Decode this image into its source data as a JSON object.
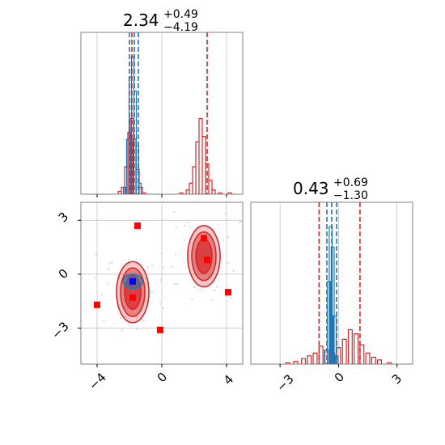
{
  "colors": {
    "posterior_a": "#d62728",
    "posterior_b": "#1f77b4",
    "grid": "#b0b0b0",
    "axes": "#808080",
    "points": "#ff0000",
    "blue_marker": "#0000ff"
  },
  "chart_data": [
    {
      "type": "histogram",
      "panel": "top-left",
      "title": {
        "value": "2.34",
        "upper": "+0.49",
        "lower": "−4.19"
      },
      "xlim": [
        -5,
        5
      ],
      "grid": true,
      "quantile_lines": {
        "red": [
          -1.85,
          2.8
        ],
        "blue": [
          -2.0,
          -1.7,
          -1.45
        ]
      },
      "series": [
        {
          "color": "red",
          "bins": [
            [
              -2.6,
              0.02
            ],
            [
              -2.4,
              0.05
            ],
            [
              -2.2,
              0.2
            ],
            [
              -2.0,
              0.45
            ],
            [
              -1.85,
              0.55
            ],
            [
              -1.7,
              0.4
            ],
            [
              -1.5,
              0.18
            ],
            [
              -1.3,
              0.05
            ],
            [
              -1.1,
              0.01
            ],
            [
              1.2,
              0.01
            ],
            [
              1.6,
              0.03
            ],
            [
              1.8,
              0.08
            ],
            [
              2.0,
              0.2
            ],
            [
              2.2,
              0.38
            ],
            [
              2.4,
              0.55
            ],
            [
              2.6,
              0.42
            ],
            [
              2.8,
              0.22
            ],
            [
              3.0,
              0.1
            ],
            [
              3.2,
              0.03
            ],
            [
              3.6,
              0.01
            ],
            [
              4.2,
              0.01
            ]
          ]
        },
        {
          "color": "blue",
          "bins": [
            [
              -2.3,
              0.05
            ],
            [
              -2.1,
              0.4
            ],
            [
              -1.95,
              0.85
            ],
            [
              -1.8,
              1.0
            ],
            [
              -1.65,
              0.75
            ],
            [
              -1.5,
              0.35
            ],
            [
              -1.35,
              0.08
            ]
          ]
        }
      ]
    },
    {
      "type": "contour",
      "panel": "bottom-left",
      "xlim": [
        -5,
        5
      ],
      "ylim": [
        -5,
        4
      ],
      "grid": true,
      "x_ticks": [
        "−4",
        "0",
        "4"
      ],
      "y_ticks": [
        "3",
        "0",
        "−3"
      ],
      "red_modes": [
        {
          "x": -1.8,
          "y": -1.0
        },
        {
          "x": 2.6,
          "y": 1.0
        }
      ],
      "blue_mode": {
        "x": -1.8,
        "y": -0.4
      },
      "points": [
        {
          "x": -1.5,
          "y": 2.7
        },
        {
          "x": -4.0,
          "y": -1.7
        },
        {
          "x": -0.1,
          "y": -3.1
        },
        {
          "x": 4.1,
          "y": -1.0
        },
        {
          "x": -1.8,
          "y": -1.3
        },
        {
          "x": 2.6,
          "y": 2.0
        },
        {
          "x": 2.8,
          "y": 0.8
        }
      ]
    },
    {
      "type": "histogram",
      "panel": "bottom-right",
      "title": {
        "value": "0.43",
        "upper": "+0.69",
        "lower": "−1.30"
      },
      "xlim": [
        -4.5,
        3.8
      ],
      "grid": true,
      "x_ticks": [
        "−3",
        "0",
        "3"
      ],
      "quantile_lines": {
        "red": [
          -1.0,
          1.1
        ],
        "blue": [
          -0.6,
          -0.35,
          -0.1
        ]
      },
      "series": [
        {
          "color": "red",
          "bins": [
            [
              -2.6,
              0.01
            ],
            [
              -2.2,
              0.02
            ],
            [
              -1.8,
              0.04
            ],
            [
              -1.5,
              0.06
            ],
            [
              -1.2,
              0.08
            ],
            [
              -0.9,
              0.13
            ],
            [
              -0.6,
              0.1
            ],
            [
              -0.3,
              0.08
            ],
            [
              0.0,
              0.12
            ],
            [
              0.3,
              0.18
            ],
            [
              0.6,
              0.25
            ],
            [
              0.9,
              0.22
            ],
            [
              1.2,
              0.14
            ],
            [
              1.5,
              0.08
            ],
            [
              1.8,
              0.05
            ],
            [
              2.1,
              0.03
            ],
            [
              2.6,
              0.01
            ]
          ]
        },
        {
          "color": "blue",
          "bins": [
            [
              -0.65,
              0.1
            ],
            [
              -0.5,
              0.6
            ],
            [
              -0.4,
              1.0
            ],
            [
              -0.3,
              0.85
            ],
            [
              -0.2,
              0.35
            ],
            [
              -0.1,
              0.06
            ]
          ]
        }
      ]
    }
  ]
}
